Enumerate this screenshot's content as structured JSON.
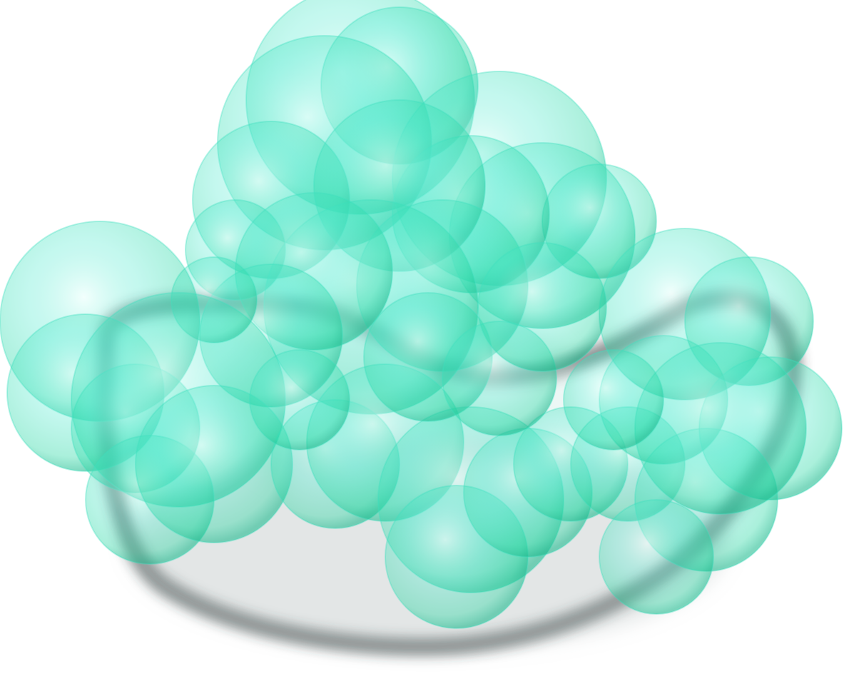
{
  "render": {
    "background": "#ffffff",
    "sphere_core_color": "#1fd6a0",
    "sphere_edge_color": "#3fe0c0",
    "sphere_highlight_color": "#e8fffb",
    "shadow_color": "#2f3b3a"
  }
}
